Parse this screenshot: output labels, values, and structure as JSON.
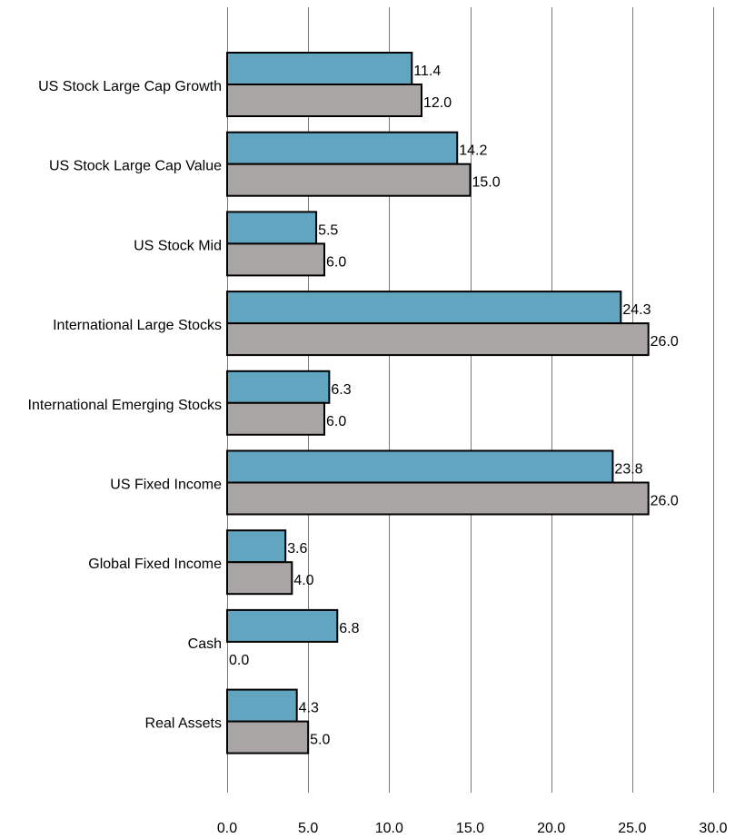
{
  "chart_data": {
    "type": "bar",
    "orientation": "horizontal",
    "categories": [
      "US Stock Large Cap Growth",
      "US Stock Large Cap Value",
      "US Stock Mid",
      "International Large Stocks",
      "International Emerging Stocks",
      "US Fixed Income",
      "Global Fixed Income",
      "Cash",
      "Real Assets"
    ],
    "series": [
      {
        "color": "#62a5c1",
        "values": [
          11.4,
          14.2,
          5.5,
          24.3,
          6.3,
          23.8,
          3.6,
          6.8,
          4.3
        ]
      },
      {
        "color": "#aaa5a5",
        "values": [
          12.0,
          15.0,
          6.0,
          26.0,
          6.0,
          26.0,
          4.0,
          0.0,
          5.0
        ]
      }
    ],
    "xlim": [
      0,
      30
    ],
    "xticks": [
      0,
      5,
      10,
      15,
      20,
      25,
      30
    ],
    "grid": "vertical",
    "legend": "none"
  }
}
